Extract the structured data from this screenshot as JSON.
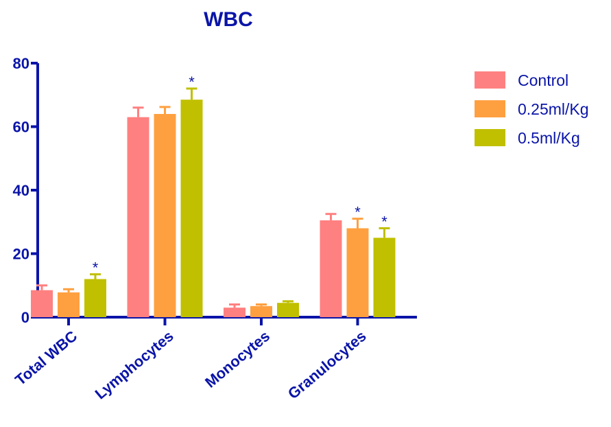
{
  "chart_data": {
    "type": "bar",
    "title": "WBC",
    "xlabel": "",
    "ylabel": "",
    "ylim": [
      0,
      80
    ],
    "yticks": [
      0,
      20,
      40,
      60,
      80
    ],
    "categories": [
      "Total WBC",
      "Lymphocytes",
      "Monocytes",
      "Granulocytes"
    ],
    "series": [
      {
        "name": "Control",
        "color": "#FF8080",
        "values": [
          8.5,
          63,
          3,
          30.5
        ],
        "errors": [
          1.5,
          3,
          1,
          2
        ],
        "significant": [
          false,
          false,
          false,
          false
        ]
      },
      {
        "name": "0.25ml/Kg",
        "color": "#FFA040",
        "values": [
          7.8,
          64,
          3.5,
          28
        ],
        "errors": [
          1,
          2.2,
          0.5,
          3
        ],
        "significant": [
          false,
          false,
          false,
          true
        ]
      },
      {
        "name": "0.5ml/Kg",
        "color": "#C0C000",
        "values": [
          12,
          68.5,
          4.5,
          25
        ],
        "errors": [
          1.5,
          3.5,
          0.5,
          3
        ],
        "significant": [
          true,
          true,
          false,
          true
        ]
      }
    ],
    "significance_marker": "*",
    "legend_position": "right",
    "grid": false,
    "axis_color": "#0A14A8"
  }
}
